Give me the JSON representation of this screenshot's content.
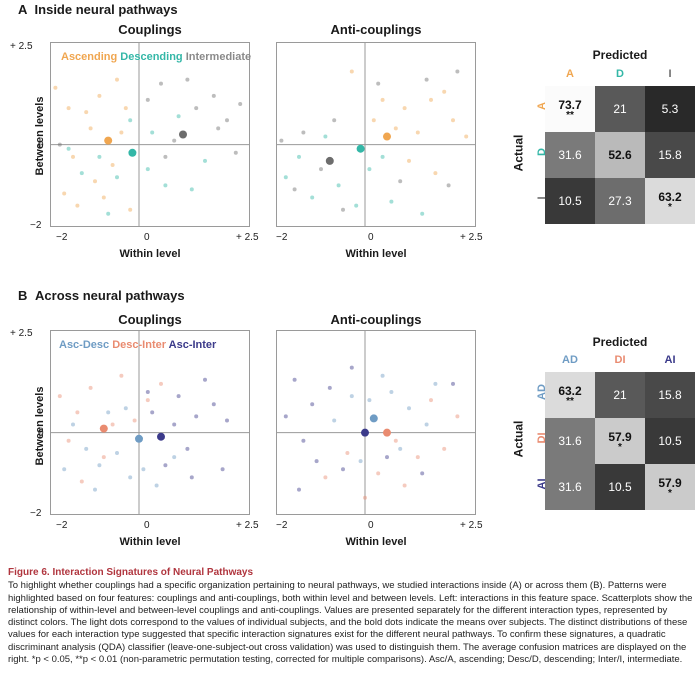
{
  "colors": {
    "ascending": "#f0a650",
    "descending": "#34b7a7",
    "intermediate": "#6d6d6d",
    "asc_desc": "#6f9cc4",
    "desc_inter": "#e98b70",
    "asc_inter": "#3b3a8a",
    "caption_title": "#b0353e"
  },
  "panelA": {
    "label": "A",
    "heading": "Inside neural pathways",
    "plot_titles": [
      "Couplings",
      "Anti-couplings"
    ],
    "legend": [
      "Ascending",
      "Descending",
      "Intermediate"
    ],
    "y_ticks": [
      "+ 2.5",
      "0",
      "−2"
    ],
    "x_ticks": [
      "−2",
      "0",
      "+ 2.5"
    ],
    "x_ticks2": [
      "−2",
      "0",
      "+ 2.5"
    ],
    "ylabel": "Between levels",
    "xlabel": "Within level",
    "xlabel2": "Within level"
  },
  "panelB": {
    "label": "B",
    "heading": "Across neural pathways",
    "plot_titles": [
      "Couplings",
      "Anti-couplings"
    ],
    "legend": [
      "Asc-Desc",
      "Desc-Inter",
      "Asc-Inter"
    ],
    "y_ticks": [
      "+ 2.5",
      "0",
      "−2"
    ],
    "x_ticks": [
      "−2",
      "0",
      "+ 2.5"
    ],
    "x_ticks2": [
      "−2",
      "0",
      "+ 2.5"
    ],
    "ylabel": "Between levels",
    "xlabel": "Within level",
    "xlabel2": "Within level"
  },
  "chart_data": [
    {
      "type": "scatter",
      "title": "Couplings",
      "xlabel": "Within level",
      "ylabel": "Between levels",
      "xlim": [
        -2,
        2.5
      ],
      "ylim": [
        -2,
        2.5
      ],
      "means": [
        {
          "name": "Ascending",
          "x": -0.7,
          "y": 0.1
        },
        {
          "name": "Descending",
          "x": -0.15,
          "y": -0.2
        },
        {
          "name": "Intermediate",
          "x": 1.0,
          "y": 0.25
        }
      ],
      "series": [
        {
          "name": "Ascending",
          "points": [
            [
              -1.9,
              1.4
            ],
            [
              -1.6,
              0.9
            ],
            [
              -1.2,
              0.8
            ],
            [
              -0.9,
              1.2
            ],
            [
              -0.5,
              1.6
            ],
            [
              -0.3,
              0.9
            ],
            [
              -1.7,
              -1.2
            ],
            [
              -1.4,
              -1.5
            ],
            [
              -1.0,
              -0.9
            ],
            [
              -0.6,
              -0.5
            ],
            [
              -0.2,
              -1.6
            ],
            [
              -1.5,
              -0.3
            ],
            [
              -0.8,
              -1.3
            ],
            [
              -1.1,
              0.4
            ],
            [
              -0.4,
              0.3
            ]
          ]
        },
        {
          "name": "Descending",
          "points": [
            [
              -1.3,
              -0.7
            ],
            [
              -0.9,
              -0.3
            ],
            [
              -0.5,
              -0.8
            ],
            [
              0.2,
              -0.6
            ],
            [
              0.6,
              -1.0
            ],
            [
              -0.2,
              0.6
            ],
            [
              0.3,
              0.3
            ],
            [
              1.2,
              -1.1
            ],
            [
              -1.6,
              -0.1
            ],
            [
              0.9,
              0.7
            ],
            [
              -0.7,
              -1.7
            ],
            [
              1.5,
              -0.4
            ]
          ]
        },
        {
          "name": "Intermediate",
          "points": [
            [
              0.5,
              1.5
            ],
            [
              1.3,
              0.9
            ],
            [
              2.0,
              0.6
            ],
            [
              1.7,
              1.2
            ],
            [
              0.8,
              0.1
            ],
            [
              2.2,
              -0.2
            ],
            [
              1.1,
              1.6
            ],
            [
              0.2,
              1.1
            ],
            [
              1.8,
              0.4
            ],
            [
              2.3,
              1.0
            ],
            [
              0.6,
              -0.3
            ],
            [
              -1.8,
              0.0
            ]
          ]
        }
      ]
    },
    {
      "type": "scatter",
      "title": "Anti-couplings",
      "xlabel": "Within level",
      "xlim": [
        -2,
        2.5
      ],
      "ylim": [
        -2,
        2.5
      ],
      "means": [
        {
          "name": "Ascending",
          "x": 0.5,
          "y": 0.2
        },
        {
          "name": "Descending",
          "x": -0.1,
          "y": -0.1
        },
        {
          "name": "Intermediate",
          "x": -0.8,
          "y": -0.4
        }
      ],
      "series": [
        {
          "name": "Ascending",
          "points": [
            [
              0.4,
              1.1
            ],
            [
              0.9,
              0.9
            ],
            [
              1.5,
              1.1
            ],
            [
              2.0,
              0.6
            ],
            [
              1.2,
              0.3
            ],
            [
              0.7,
              0.4
            ],
            [
              1.8,
              1.3
            ],
            [
              2.3,
              0.2
            ],
            [
              0.2,
              0.6
            ],
            [
              1.0,
              -0.4
            ],
            [
              1.6,
              -0.7
            ],
            [
              -0.3,
              1.8
            ]
          ]
        },
        {
          "name": "Descending",
          "points": [
            [
              -1.5,
              -0.3
            ],
            [
              -1.2,
              -1.3
            ],
            [
              -0.6,
              -1.0
            ],
            [
              0.1,
              -0.6
            ],
            [
              0.6,
              -1.4
            ],
            [
              -0.9,
              0.2
            ],
            [
              1.3,
              -1.7
            ],
            [
              0.4,
              -0.3
            ],
            [
              -1.8,
              -0.8
            ],
            [
              -0.2,
              -1.5
            ]
          ]
        },
        {
          "name": "Intermediate",
          "points": [
            [
              -1.6,
              -1.1
            ],
            [
              -1.0,
              -0.6
            ],
            [
              -1.4,
              0.3
            ],
            [
              -0.5,
              -1.6
            ],
            [
              0.3,
              1.5
            ],
            [
              1.4,
              1.6
            ],
            [
              2.1,
              1.8
            ],
            [
              -1.9,
              0.1
            ],
            [
              0.8,
              -0.9
            ],
            [
              -0.7,
              0.6
            ],
            [
              1.9,
              -1.0
            ]
          ]
        }
      ]
    },
    {
      "type": "scatter",
      "title": "Couplings",
      "xlabel": "Within level",
      "ylabel": "Between levels",
      "xlim": [
        -2,
        2.5
      ],
      "ylim": [
        -2,
        2.5
      ],
      "means": [
        {
          "name": "Asc-Desc",
          "x": 0.0,
          "y": -0.15
        },
        {
          "name": "Desc-Inter",
          "x": -0.8,
          "y": 0.1
        },
        {
          "name": "Asc-Inter",
          "x": 0.5,
          "y": -0.1
        }
      ],
      "series": [
        {
          "name": "Asc-Desc",
          "points": [
            [
              -1.2,
              -0.4
            ],
            [
              -0.9,
              -0.8
            ],
            [
              -0.5,
              -0.5
            ],
            [
              -0.2,
              -1.1
            ],
            [
              0.1,
              -0.9
            ],
            [
              -1.5,
              0.2
            ],
            [
              -0.7,
              0.5
            ],
            [
              0.4,
              -1.3
            ],
            [
              -1.0,
              -1.4
            ],
            [
              -0.3,
              0.6
            ],
            [
              0.8,
              -0.6
            ],
            [
              -1.7,
              -0.9
            ]
          ]
        },
        {
          "name": "Desc-Inter",
          "points": [
            [
              -1.8,
              0.9
            ],
            [
              -1.4,
              0.5
            ],
            [
              -1.1,
              1.1
            ],
            [
              -0.6,
              0.2
            ],
            [
              -0.4,
              1.4
            ],
            [
              -1.6,
              -0.2
            ],
            [
              -0.8,
              -0.6
            ],
            [
              0.2,
              0.8
            ],
            [
              -1.3,
              -1.2
            ],
            [
              0.5,
              1.2
            ],
            [
              -0.1,
              0.3
            ]
          ]
        },
        {
          "name": "Asc-Inter",
          "points": [
            [
              0.3,
              0.5
            ],
            [
              0.9,
              0.9
            ],
            [
              1.3,
              0.4
            ],
            [
              1.7,
              0.7
            ],
            [
              0.6,
              -0.8
            ],
            [
              1.1,
              -0.4
            ],
            [
              1.9,
              -0.9
            ],
            [
              0.2,
              1.0
            ],
            [
              1.5,
              1.3
            ],
            [
              0.8,
              0.2
            ],
            [
              2.0,
              0.3
            ],
            [
              1.2,
              -1.1
            ]
          ]
        }
      ]
    },
    {
      "type": "scatter",
      "title": "Anti-couplings",
      "xlabel": "Within level",
      "xlim": [
        -2,
        2.5
      ],
      "ylim": [
        -2,
        2.5
      ],
      "means": [
        {
          "name": "Asc-Desc",
          "x": 0.2,
          "y": 0.35
        },
        {
          "name": "Desc-Inter",
          "x": 0.5,
          "y": 0.0
        },
        {
          "name": "Asc-Inter",
          "x": 0.0,
          "y": 0.0
        }
      ],
      "series": [
        {
          "name": "Asc-Desc",
          "points": [
            [
              0.1,
              0.8
            ],
            [
              0.6,
              1.0
            ],
            [
              -0.3,
              0.9
            ],
            [
              1.0,
              0.6
            ],
            [
              0.4,
              1.4
            ],
            [
              -0.7,
              0.3
            ],
            [
              1.4,
              0.2
            ],
            [
              0.8,
              -0.4
            ],
            [
              -0.1,
              -0.7
            ],
            [
              1.6,
              1.2
            ]
          ]
        },
        {
          "name": "Desc-Inter",
          "points": [
            [
              0.7,
              -0.2
            ],
            [
              1.2,
              -0.6
            ],
            [
              0.3,
              -1.0
            ],
            [
              1.8,
              -0.4
            ],
            [
              -0.4,
              -0.5
            ],
            [
              0.9,
              -1.3
            ],
            [
              2.1,
              0.4
            ],
            [
              1.5,
              0.8
            ],
            [
              -0.9,
              -1.1
            ],
            [
              0.0,
              -1.6
            ]
          ]
        },
        {
          "name": "Asc-Inter",
          "points": [
            [
              -1.6,
              1.3
            ],
            [
              -1.2,
              0.7
            ],
            [
              -0.8,
              1.1
            ],
            [
              -1.4,
              -0.2
            ],
            [
              -0.5,
              -0.9
            ],
            [
              -1.1,
              -0.7
            ],
            [
              -1.8,
              0.4
            ],
            [
              0.5,
              -0.6
            ],
            [
              2.0,
              1.2
            ],
            [
              1.3,
              -1.0
            ],
            [
              -0.3,
              1.6
            ],
            [
              -1.5,
              -1.4
            ]
          ]
        }
      ]
    },
    {
      "type": "heatmap",
      "title": "Predicted",
      "ylabel": "Actual",
      "columns": [
        "A",
        "D",
        "I"
      ],
      "rows": [
        "A",
        "D",
        "I"
      ],
      "values": [
        [
          "73.7",
          "21",
          "5.3"
        ],
        [
          "31.6",
          "52.6",
          "15.8"
        ],
        [
          "10.5",
          "27.3",
          "63.2"
        ]
      ],
      "stars": [
        [
          "**",
          "",
          ""
        ],
        [
          "",
          "",
          ""
        ],
        [
          "",
          "",
          "*"
        ]
      ]
    },
    {
      "type": "heatmap",
      "title": "Predicted",
      "ylabel": "Actual",
      "columns": [
        "AD",
        "DI",
        "AI"
      ],
      "rows": [
        "AD",
        "DI",
        "AI"
      ],
      "values": [
        [
          "63.2",
          "21",
          "15.8"
        ],
        [
          "31.6",
          "57.9",
          "10.5"
        ],
        [
          "31.6",
          "10.5",
          "57.9"
        ]
      ],
      "stars": [
        [
          "**",
          "",
          ""
        ],
        [
          "",
          "*",
          ""
        ],
        [
          "",
          "",
          "*"
        ]
      ]
    }
  ],
  "caption": {
    "title": "Figure 6.  Interaction Signatures of Neural Pathways",
    "text": "To highlight whether couplings had a specific organization pertaining to neural pathways, we studied interactions inside (A) or across them (B). Patterns were highlighted based on four features: couplings and anti-couplings, both within level and between levels. Left: interactions in this feature space. Scatterplots show the relationship of within-level and between-level couplings and anti-couplings. Values are presented separately for the different interaction types, represented by distinct colors. The light dots correspond to the values of individual subjects, and the bold dots indicate the means over subjects. The distinct distributions of these values for each interaction type suggested that specific interaction signatures exist for the different neural pathways. To confirm these signatures, a quadratic discriminant analysis (QDA) classifier (leave-one-subject-out cross validation) was used to distinguish them. The average confusion matrices are displayed on the right. *p < 0.05, **p < 0.01 (non-parametric permutation testing, corrected for multiple comparisons). Asc/A, ascending; Desc/D, descending; Inter/I, intermediate."
  }
}
